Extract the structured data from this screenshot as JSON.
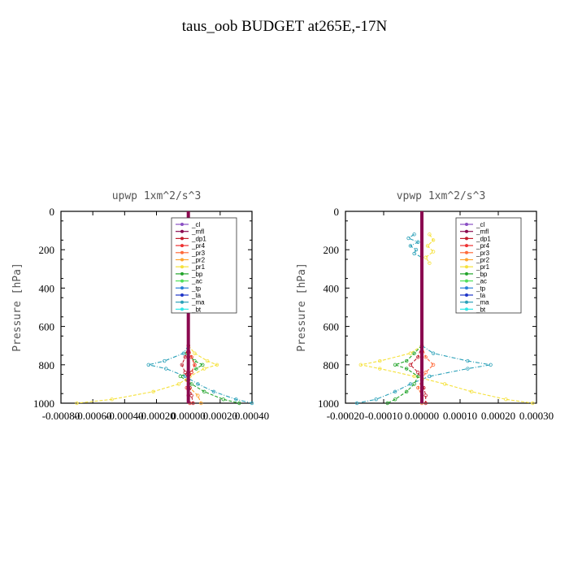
{
  "title": "taus_oob  BUDGET at265E,-17N",
  "legend_labels": [
    "_cl",
    "_mfl",
    "_dp1",
    "_pr4",
    "_pr3",
    "_pr2",
    "_pr1",
    "_bp",
    "_ac",
    "_tp",
    "_ta",
    "_ma",
    "_bt"
  ],
  "colors": {
    "_cl": "#8a4fc4",
    "_mfl": "#8b0a50",
    "_dp1": "#c21c2c",
    "_pr4": "#ee3030",
    "_pr3": "#ff6a3a",
    "_pr2": "#ffa52e",
    "_pr1": "#f5e13a",
    "_bp": "#22a42a",
    "_ac": "#4fe05a",
    "_tp": "#2a7fd8",
    "_ta": "#1f35c8",
    "_ma": "#2aa0b8",
    "_bt": "#30e6e6"
  },
  "chart_data": [
    {
      "type": "line",
      "title": "upwp   1xm^2/s^3",
      "ylabel": "Pressure [hPa]",
      "xlim": [
        -0.0008,
        0.0004
      ],
      "ylim": [
        1000,
        0
      ],
      "xticklabels": [
        "-0.00080",
        "-0.00060",
        "-0.00040",
        "-0.00020",
        "0.00000",
        "0.00020",
        "0.00040"
      ],
      "yticks": [
        0,
        200,
        400,
        600,
        800,
        1000
      ],
      "legend": "top-right",
      "series": [
        {
          "name": "_ma",
          "p": [
            700,
            740,
            780,
            800,
            820,
            860,
            900,
            940,
            980,
            1000
          ],
          "x": [
            0,
            -3e-05,
            -0.00015,
            -0.00025,
            -0.00014,
            -2e-05,
            6e-05,
            0.00016,
            0.0003,
            0.0004
          ]
        },
        {
          "name": "_pr1",
          "p": [
            700,
            740,
            780,
            800,
            820,
            860,
            900,
            940,
            980,
            1000
          ],
          "x": [
            0,
            4e-05,
            0.00012,
            0.00018,
            0.0001,
            1e-05,
            -6e-05,
            -0.00022,
            -0.00048,
            -0.0007
          ]
        },
        {
          "name": "_bp",
          "p": [
            700,
            740,
            780,
            800,
            820,
            860,
            900,
            940,
            980,
            1000
          ],
          "x": [
            0,
            -1e-05,
            4e-05,
            9e-05,
            5e-05,
            -5e-05,
            2e-05,
            0.0001,
            0.00022,
            0.00032
          ]
        },
        {
          "name": "_pr2",
          "p": [
            700,
            760,
            800,
            840,
            880,
            920,
            960,
            1000
          ],
          "x": [
            0,
            2e-05,
            4e-05,
            2e-05,
            -1e-05,
            1e-05,
            6e-05,
            8e-05
          ]
        },
        {
          "name": "_dp1",
          "p": [
            700,
            760,
            800,
            840,
            880,
            920,
            960,
            1000
          ],
          "x": [
            0,
            -2e-05,
            -4e-05,
            -2e-05,
            0,
            1e-05,
            2e-05,
            3e-05
          ]
        },
        {
          "name": "_pr4",
          "p": [
            700,
            760,
            800,
            840,
            880,
            920,
            960,
            1000
          ],
          "x": [
            0,
            2e-05,
            4e-05,
            2e-05,
            0,
            -1e-05,
            0,
            1e-05
          ]
        },
        {
          "name": "_mfl",
          "p": [
            0,
            200,
            400,
            600,
            800,
            1000
          ],
          "x": [
            0,
            0,
            0,
            0,
            0,
            0
          ]
        }
      ]
    },
    {
      "type": "line",
      "title": "vpwp   1xm^2/s^3",
      "ylabel": "Pressure [hPa]",
      "xlim": [
        -0.0002,
        0.0003
      ],
      "ylim": [
        1000,
        0
      ],
      "xticklabels": [
        "-0.00020",
        "-0.00010",
        "0.00000",
        "0.00010",
        "0.00020",
        "0.00030"
      ],
      "yticks": [
        0,
        200,
        400,
        600,
        800,
        1000
      ],
      "legend": "top-right",
      "series": [
        {
          "name": "_ma",
          "p": [
            120,
            140,
            160,
            180,
            200,
            220,
            240
          ],
          "x": [
            -2e-05,
            -3.5e-05,
            -1e-05,
            -3e-05,
            -1.5e-05,
            -2e-05,
            0
          ]
        },
        {
          "name": "_pr1",
          "p": [
            120,
            150,
            180,
            210,
            240,
            270
          ],
          "x": [
            2e-05,
            3e-05,
            1.5e-05,
            3e-05,
            1e-05,
            2e-05
          ]
        },
        {
          "name": "_ma",
          "p": [
            700,
            740,
            780,
            800,
            820,
            860,
            900,
            940,
            980,
            1000
          ],
          "x": [
            0,
            3e-05,
            0.00012,
            0.00018,
            0.00012,
            2e-05,
            -3e-05,
            -7e-05,
            -0.00012,
            -0.00017
          ]
        },
        {
          "name": "_pr1",
          "p": [
            700,
            740,
            780,
            800,
            820,
            860,
            900,
            940,
            980,
            1000
          ],
          "x": [
            0,
            -3e-05,
            -0.00011,
            -0.00016,
            -0.00011,
            -2e-05,
            6e-05,
            0.00013,
            0.00022,
            0.00029
          ]
        },
        {
          "name": "_bp",
          "p": [
            700,
            740,
            780,
            800,
            820,
            860,
            900,
            940,
            980,
            1000
          ],
          "x": [
            0,
            -2e-05,
            -4e-05,
            -7e-05,
            -4e-05,
            -1e-05,
            -2e-05,
            -4e-05,
            -7e-05,
            -9e-05
          ]
        },
        {
          "name": "_pr3",
          "p": [
            700,
            760,
            800,
            840,
            880,
            920,
            960,
            1000
          ],
          "x": [
            0,
            1e-05,
            3e-05,
            1e-05,
            0,
            -1e-05,
            0,
            0
          ]
        },
        {
          "name": "_dp1",
          "p": [
            700,
            760,
            800,
            840,
            880,
            920,
            960,
            1000
          ],
          "x": [
            0,
            -1e-05,
            -3e-05,
            -1e-05,
            0,
            5e-06,
            1e-05,
            1e-05
          ]
        },
        {
          "name": "_mfl",
          "p": [
            0,
            200,
            400,
            600,
            800,
            1000
          ],
          "x": [
            0,
            0,
            0,
            0,
            0,
            0
          ]
        }
      ]
    }
  ]
}
